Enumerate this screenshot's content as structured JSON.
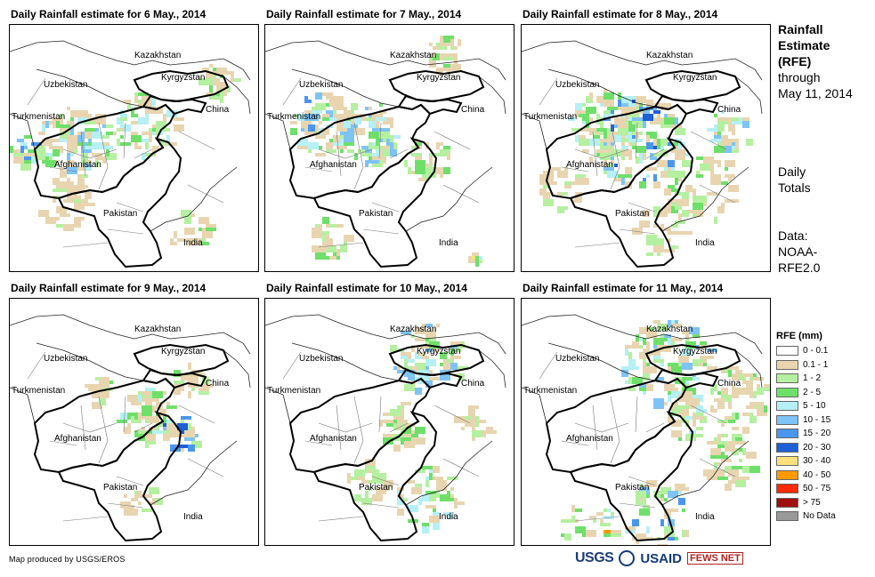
{
  "panels": [
    {
      "title": "Daily Rainfall estimate for 6 May., 2014"
    },
    {
      "title": "Daily Rainfall estimate for 7 May., 2014"
    },
    {
      "title": "Daily Rainfall estimate for 8 May., 2014"
    },
    {
      "title": "Daily Rainfall estimate for 9 May., 2014"
    },
    {
      "title": "Daily Rainfall estimate for 10 May., 2014"
    },
    {
      "title": "Daily Rainfall estimate for 11 May., 2014"
    }
  ],
  "map_labels": {
    "kazakhstan": "Kazakhstan",
    "kyrgyzstan": "Kyrgyzstan",
    "uzbekistan": "Uzbekistan",
    "turkmenistan": "Turkmenistan",
    "china": "China",
    "afghanistan": "Afghanistan",
    "pakistan": "Pakistan",
    "india": "India"
  },
  "sidebar": {
    "title_line1": "Rainfall",
    "title_line2": "Estimate",
    "title_line3": "(RFE)",
    "through": "through",
    "date": "May 11, 2014",
    "daily": "Daily",
    "totals": "Totals",
    "data_label": "Data:",
    "data_src1": "NOAA-",
    "data_src2": "RFE2.0"
  },
  "legend": {
    "title": "RFE (mm)",
    "items": [
      {
        "label": "0 - 0.1",
        "color": "#ffffff"
      },
      {
        "label": "0.1 - 1",
        "color": "#e8d5b0"
      },
      {
        "label": "1 - 2",
        "color": "#b5f0a0"
      },
      {
        "label": "2 - 5",
        "color": "#6ee06a"
      },
      {
        "label": "5 - 10",
        "color": "#b4f0f5"
      },
      {
        "label": "10 - 15",
        "color": "#7ec3f5"
      },
      {
        "label": "15 - 20",
        "color": "#4a96ee"
      },
      {
        "label": "20 - 30",
        "color": "#1f5fd6"
      },
      {
        "label": "30 - 40",
        "color": "#ffe07a"
      },
      {
        "label": "40 - 50",
        "color": "#ff9a00"
      },
      {
        "label": "50 - 75",
        "color": "#ff2a00"
      },
      {
        "label": "> 75",
        "color": "#a01010"
      },
      {
        "label": "No Data",
        "color": "#999999"
      }
    ]
  },
  "credit": "Map produced by USGS/EROS",
  "logos": {
    "usgs": "USGS",
    "usaid": "USAID",
    "fews": "FEWS NET"
  }
}
